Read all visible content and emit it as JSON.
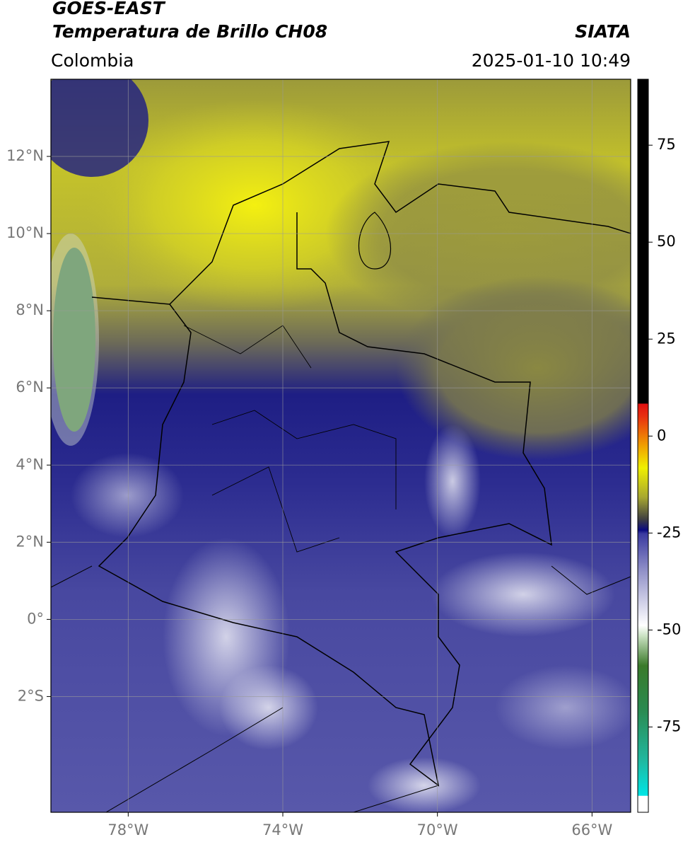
{
  "header": {
    "title": "GOES-EAST",
    "subtitle": "Temperatura de Brillo CH08",
    "region": "Colombia",
    "source": "SIATA",
    "timestamp": "2025-01-10 10:49"
  },
  "map": {
    "xlim": [
      -80,
      -65
    ],
    "ylim": [
      -5,
      14
    ],
    "xticks": [
      {
        "value": -78,
        "label": "78°W"
      },
      {
        "value": -74,
        "label": "74°W"
      },
      {
        "value": -70,
        "label": "70°W"
      },
      {
        "value": -66,
        "label": "66°W"
      }
    ],
    "yticks": [
      {
        "value": 12,
        "label": "12°N"
      },
      {
        "value": 10,
        "label": "10°N"
      },
      {
        "value": 8,
        "label": "8°N"
      },
      {
        "value": 6,
        "label": "6°N"
      },
      {
        "value": 4,
        "label": "4°N"
      },
      {
        "value": 2,
        "label": "2°N"
      },
      {
        "value": 0,
        "label": "0°"
      },
      {
        "value": -2,
        "label": "2°S"
      }
    ]
  },
  "colorbar": {
    "lim": [
      -97,
      92
    ],
    "ticks": [
      75,
      50,
      25,
      0,
      -25,
      -50,
      -75
    ]
  }
}
